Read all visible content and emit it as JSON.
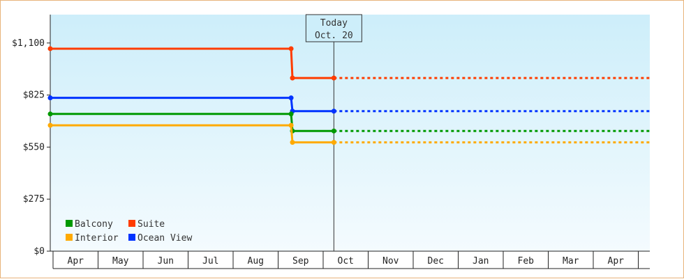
{
  "chart_data": {
    "type": "line",
    "step": true,
    "y_ticks": [
      "$0",
      "$275",
      "$550",
      "$825",
      "$1,100"
    ],
    "y_tick_values": [
      0,
      275,
      550,
      825,
      1100
    ],
    "ylim": [
      0,
      1250
    ],
    "months": [
      "Apr",
      "May",
      "Jun",
      "Jul",
      "Aug",
      "Sep",
      "Oct",
      "Nov",
      "Dec",
      "Jan",
      "Feb",
      "Mar",
      "Apr"
    ],
    "today": {
      "line1": "Today",
      "line2": "Oct. 20",
      "month_index": 6.3
    },
    "series": [
      {
        "name": "Suite",
        "color": "#ff3c00",
        "points": [
          [
            0,
            1070
          ],
          [
            5.35,
            1070
          ],
          [
            5.38,
            915
          ],
          [
            6.3,
            915
          ]
        ],
        "projected": 915
      },
      {
        "name": "Ocean View",
        "color": "#0033ff",
        "points": [
          [
            0,
            810
          ],
          [
            5.35,
            810
          ],
          [
            5.38,
            740
          ],
          [
            6.3,
            740
          ]
        ],
        "projected": 740
      },
      {
        "name": "Balcony",
        "color": "#009900",
        "points": [
          [
            0,
            725
          ],
          [
            5.35,
            725
          ],
          [
            5.38,
            635
          ],
          [
            6.3,
            635
          ]
        ],
        "projected": 635
      },
      {
        "name": "Interior",
        "color": "#ffaa00",
        "points": [
          [
            0,
            665
          ],
          [
            5.35,
            665
          ],
          [
            5.38,
            575
          ],
          [
            6.3,
            575
          ]
        ],
        "projected": 575
      }
    ],
    "legend": [
      {
        "name": "Balcony",
        "color": "#009900"
      },
      {
        "name": "Suite",
        "color": "#ff3c00"
      },
      {
        "name": "Interior",
        "color": "#ffaa00"
      },
      {
        "name": "Ocean View",
        "color": "#0033ff"
      }
    ],
    "legend_position": "bottom-left"
  }
}
